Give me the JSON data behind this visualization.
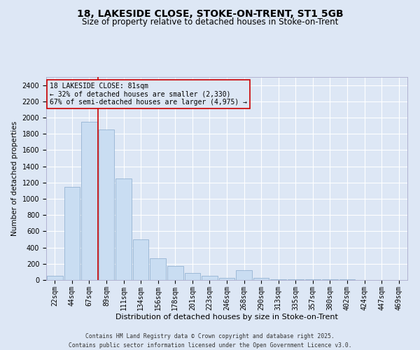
{
  "title_line1": "18, LAKESIDE CLOSE, STOKE-ON-TRENT, ST1 5GB",
  "title_line2": "Size of property relative to detached houses in Stoke-on-Trent",
  "xlabel": "Distribution of detached houses by size in Stoke-on-Trent",
  "ylabel": "Number of detached properties",
  "categories": [
    "22sqm",
    "44sqm",
    "67sqm",
    "89sqm",
    "111sqm",
    "134sqm",
    "156sqm",
    "178sqm",
    "201sqm",
    "223sqm",
    "246sqm",
    "268sqm",
    "290sqm",
    "313sqm",
    "335sqm",
    "357sqm",
    "380sqm",
    "402sqm",
    "424sqm",
    "447sqm",
    "469sqm"
  ],
  "values": [
    50,
    1150,
    1950,
    1850,
    1250,
    500,
    270,
    170,
    90,
    55,
    25,
    120,
    30,
    10,
    5,
    5,
    5,
    5,
    3,
    3,
    2
  ],
  "bar_color": "#c9ddf2",
  "bar_edge_color": "#88aacc",
  "bg_color": "#dde7f5",
  "grid_color": "#ffffff",
  "vline_color": "#cc0000",
  "vline_pos": 2.5,
  "annotation_box_text": "18 LAKESIDE CLOSE: 81sqm\n← 32% of detached houses are smaller (2,330)\n67% of semi-detached houses are larger (4,975) →",
  "annotation_box_color": "#cc0000",
  "annotation_text_size": 7,
  "ylim": [
    0,
    2500
  ],
  "yticks": [
    0,
    200,
    400,
    600,
    800,
    1000,
    1200,
    1400,
    1600,
    1800,
    2000,
    2200,
    2400
  ],
  "footer_line1": "Contains HM Land Registry data © Crown copyright and database right 2025.",
  "footer_line2": "Contains public sector information licensed under the Open Government Licence v3.0.",
  "title_fontsize": 10,
  "subtitle_fontsize": 8.5,
  "axis_label_fontsize": 8,
  "tick_fontsize": 7,
  "ylabel_fontsize": 7.5
}
